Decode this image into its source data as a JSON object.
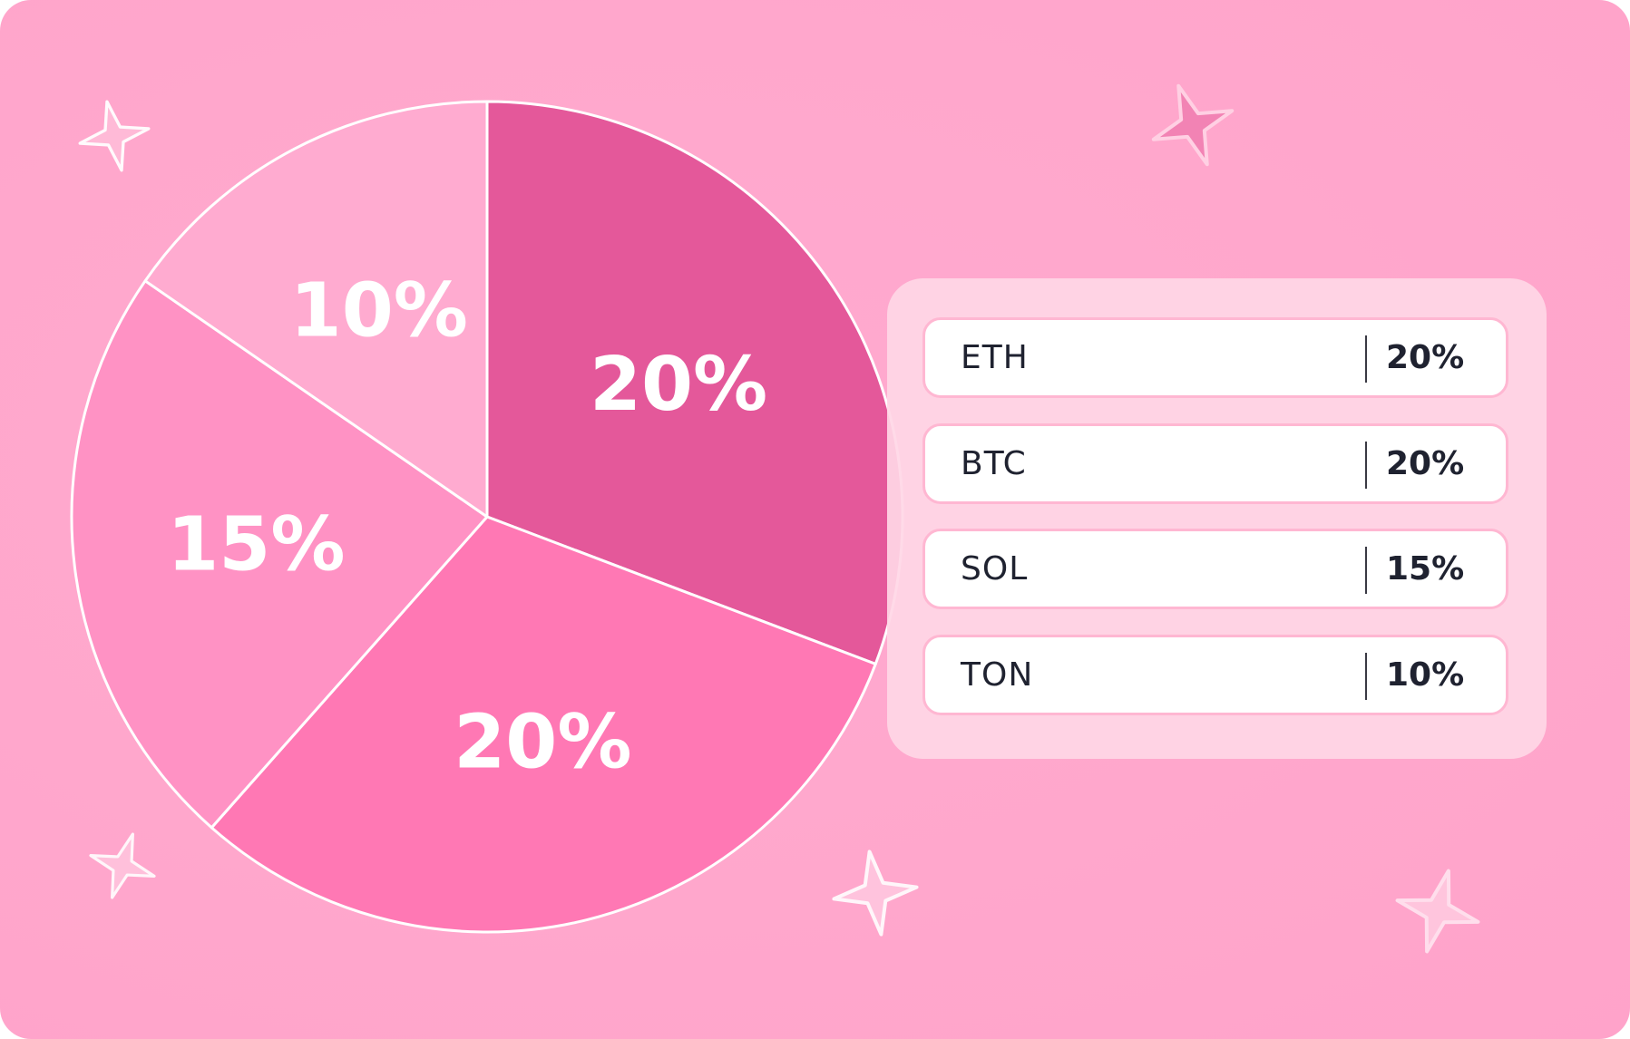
{
  "chart_data": {
    "type": "pie",
    "title": "",
    "slices": [
      {
        "label": "20%",
        "value": 20,
        "color": "#e4589a"
      },
      {
        "label": "20%",
        "value": 20,
        "color": "#ff78b4"
      },
      {
        "label": "15%",
        "value": 15,
        "color": "#ff92c4"
      },
      {
        "label": "10%",
        "value": 10,
        "color": "#ffabd0"
      }
    ],
    "legend": [
      {
        "name": "ETH",
        "value": "20%"
      },
      {
        "name": "BTC",
        "value": "20%"
      },
      {
        "name": "SOL",
        "value": "15%"
      },
      {
        "name": "TON",
        "value": "10%"
      }
    ],
    "legend_placement": "right"
  },
  "colors": {
    "background": "#ffa7cc",
    "legend_panel": "#ffd7e6",
    "slice_outline": "#ffffff",
    "text_dark": "#1f2230"
  },
  "decorations": [
    "sparkle-icon",
    "sparkle-icon",
    "sparkle-icon",
    "sparkle-icon",
    "sparkle-icon"
  ]
}
